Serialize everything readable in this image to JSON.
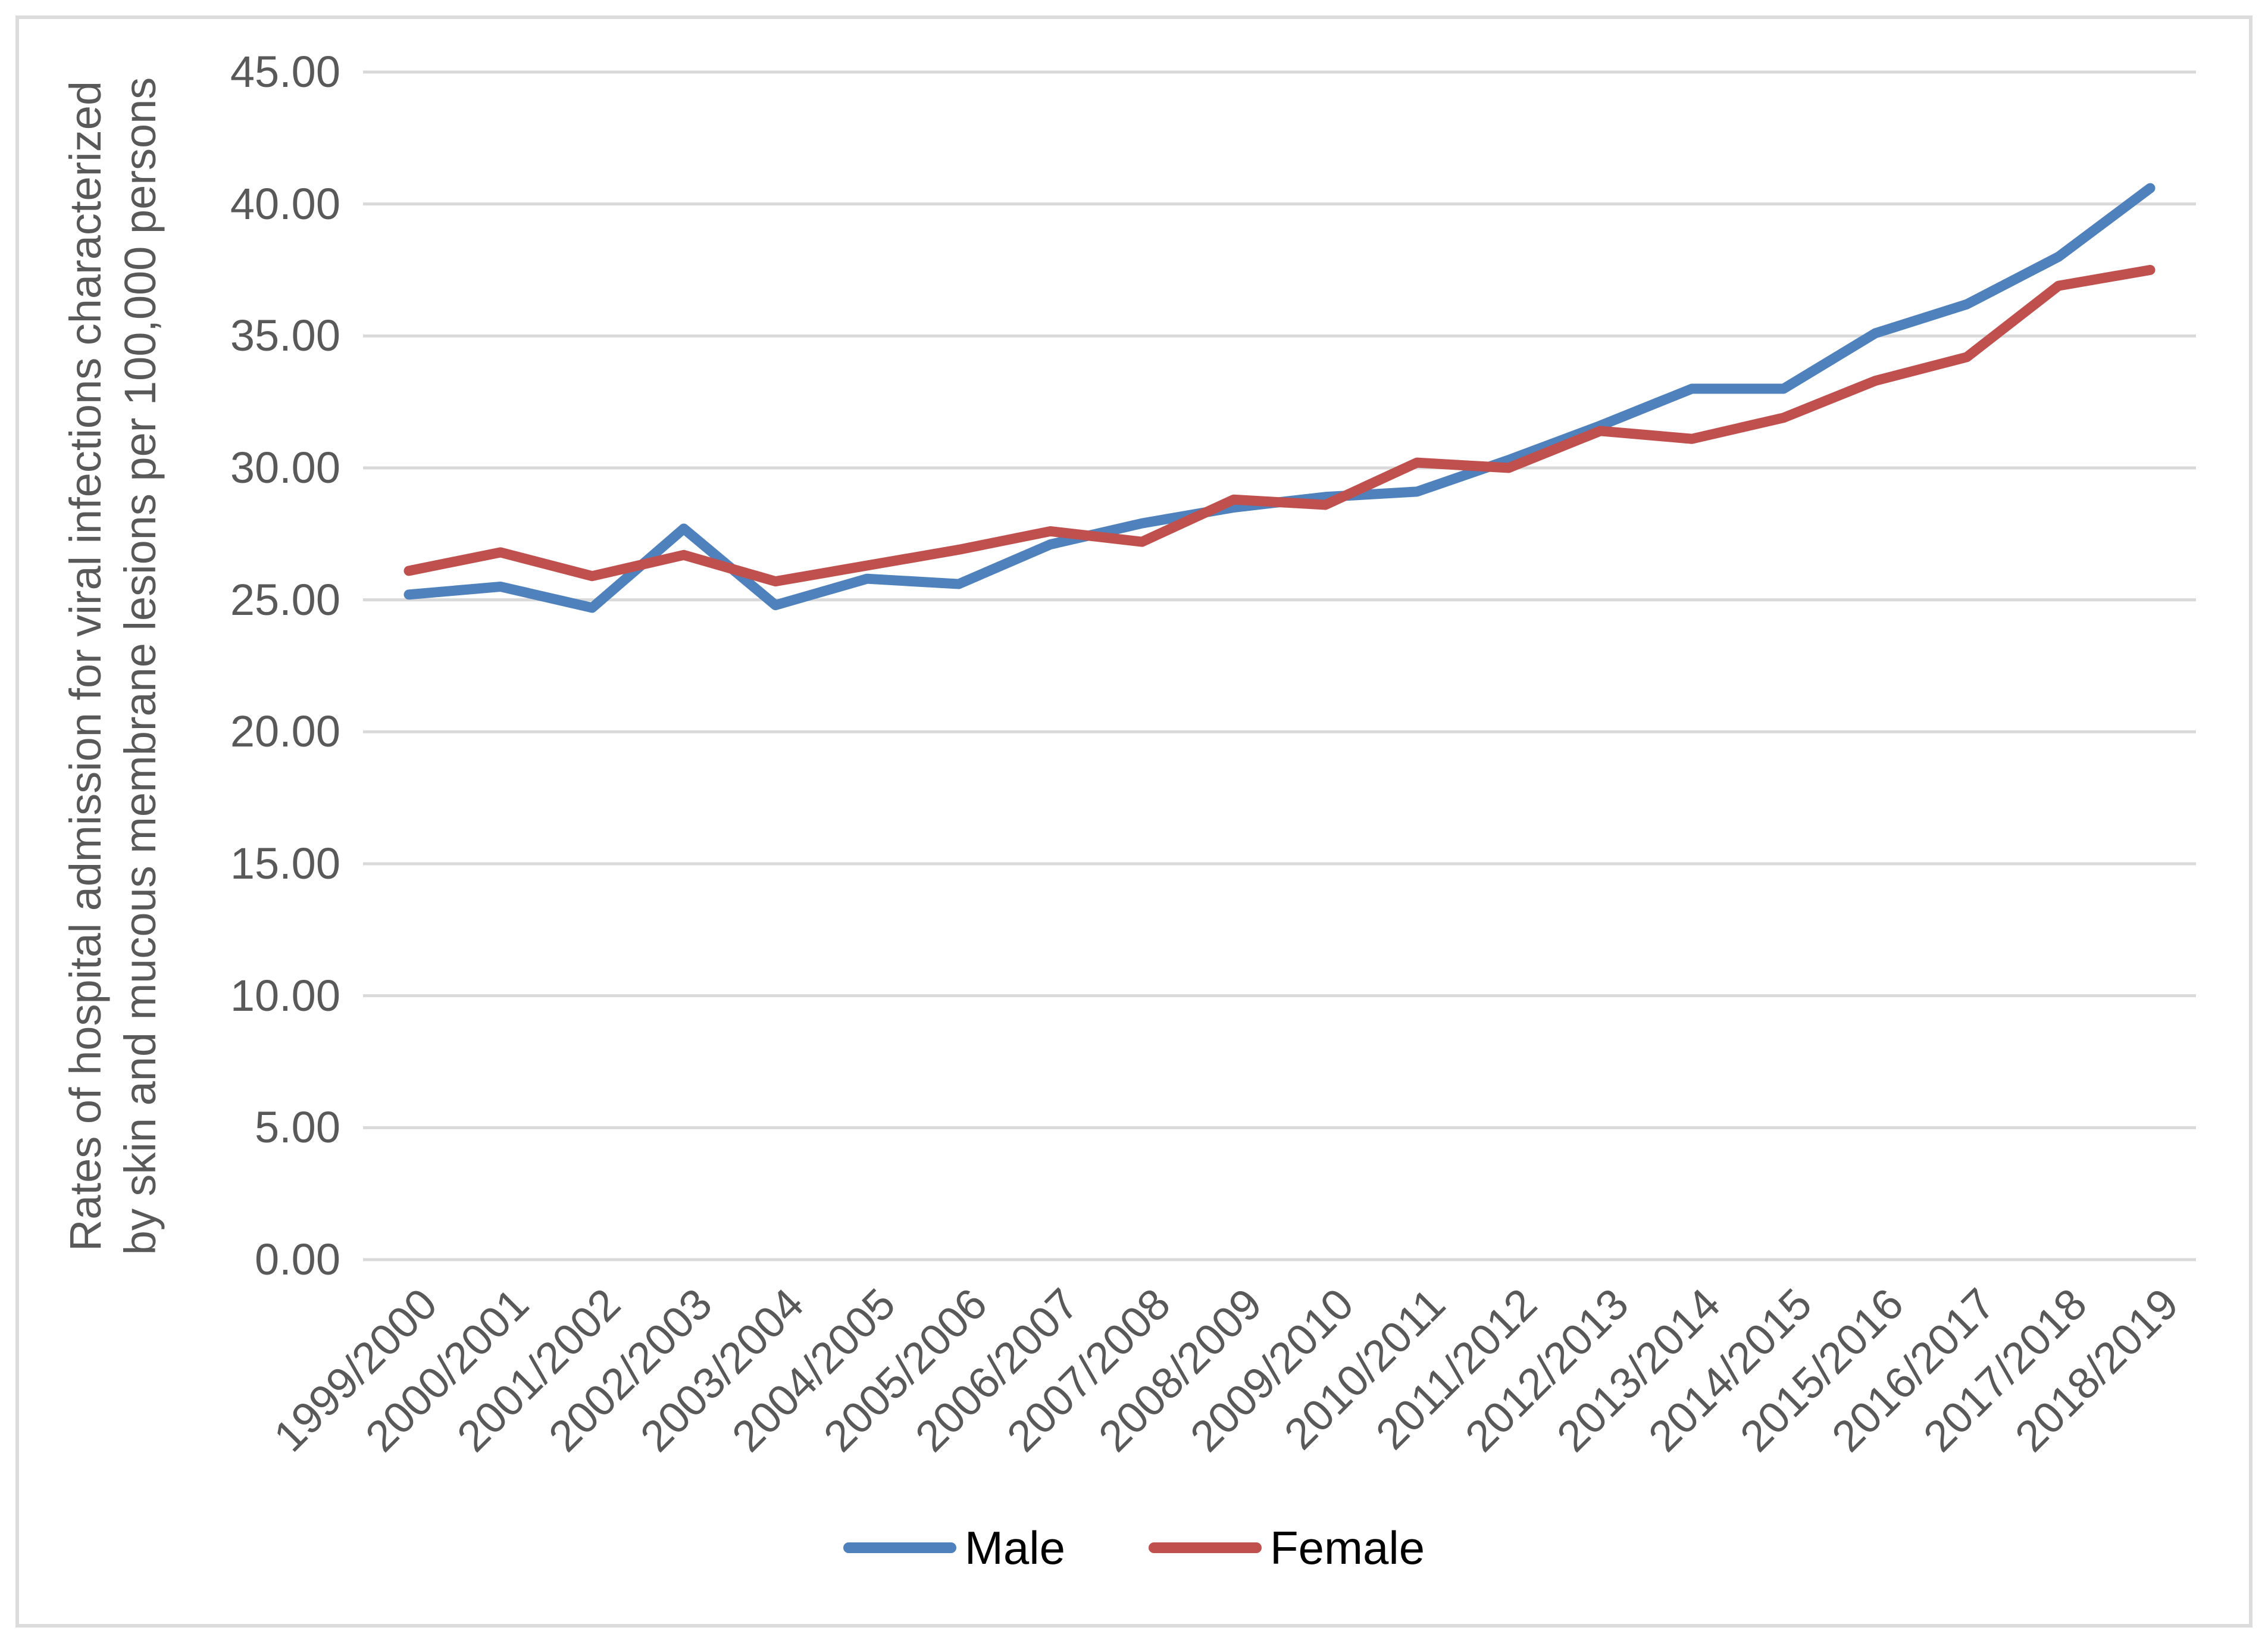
{
  "figure": {
    "background": "#FFFFFF",
    "border_color": "#DCDCDC",
    "text_color": "#595959",
    "gridline_color": "#D9D9D9"
  },
  "chart_data": {
    "type": "line",
    "title": "",
    "xlabel": "",
    "ylabel_line1": "Rates of hospital admission for viral infections characterized",
    "ylabel_line2": "by skin and mucous membrane lesions per 100,000 persons",
    "categories": [
      "1999/2000",
      "2000/2001",
      "2001/2002",
      "2002/2003",
      "2003/2004",
      "2004/2005",
      "2005/2006",
      "2006/2007",
      "2007/2008",
      "2008/2009",
      "2009/2010",
      "2010/2011",
      "2011/2012",
      "2012/2013",
      "2013/2014",
      "2014/2015",
      "2015/2016",
      "2016/2017",
      "2017/2018",
      "2018/2019"
    ],
    "series": [
      {
        "name": "Male",
        "color": "#4F81BD",
        "values": [
          25.2,
          25.5,
          24.7,
          27.7,
          24.8,
          25.8,
          25.6,
          27.1,
          27.9,
          28.5,
          28.9,
          29.1,
          30.3,
          31.6,
          33.0,
          33.0,
          35.1,
          36.2,
          38.0,
          40.6
        ]
      },
      {
        "name": "Female",
        "color": "#C0504D",
        "values": [
          26.1,
          26.8,
          25.9,
          26.7,
          25.7,
          26.3,
          26.9,
          27.6,
          27.2,
          28.8,
          28.6,
          30.2,
          30.0,
          31.4,
          31.1,
          31.9,
          33.3,
          34.2,
          36.9,
          37.5
        ]
      }
    ],
    "ylim": [
      0,
      45
    ],
    "ytick_step": 5,
    "ytick_labels": [
      "0.00",
      "5.00",
      "10.00",
      "15.00",
      "20.00",
      "25.00",
      "30.00",
      "35.00",
      "40.00",
      "45.00"
    ],
    "grid": "horizontal",
    "legend_position": "bottom"
  }
}
